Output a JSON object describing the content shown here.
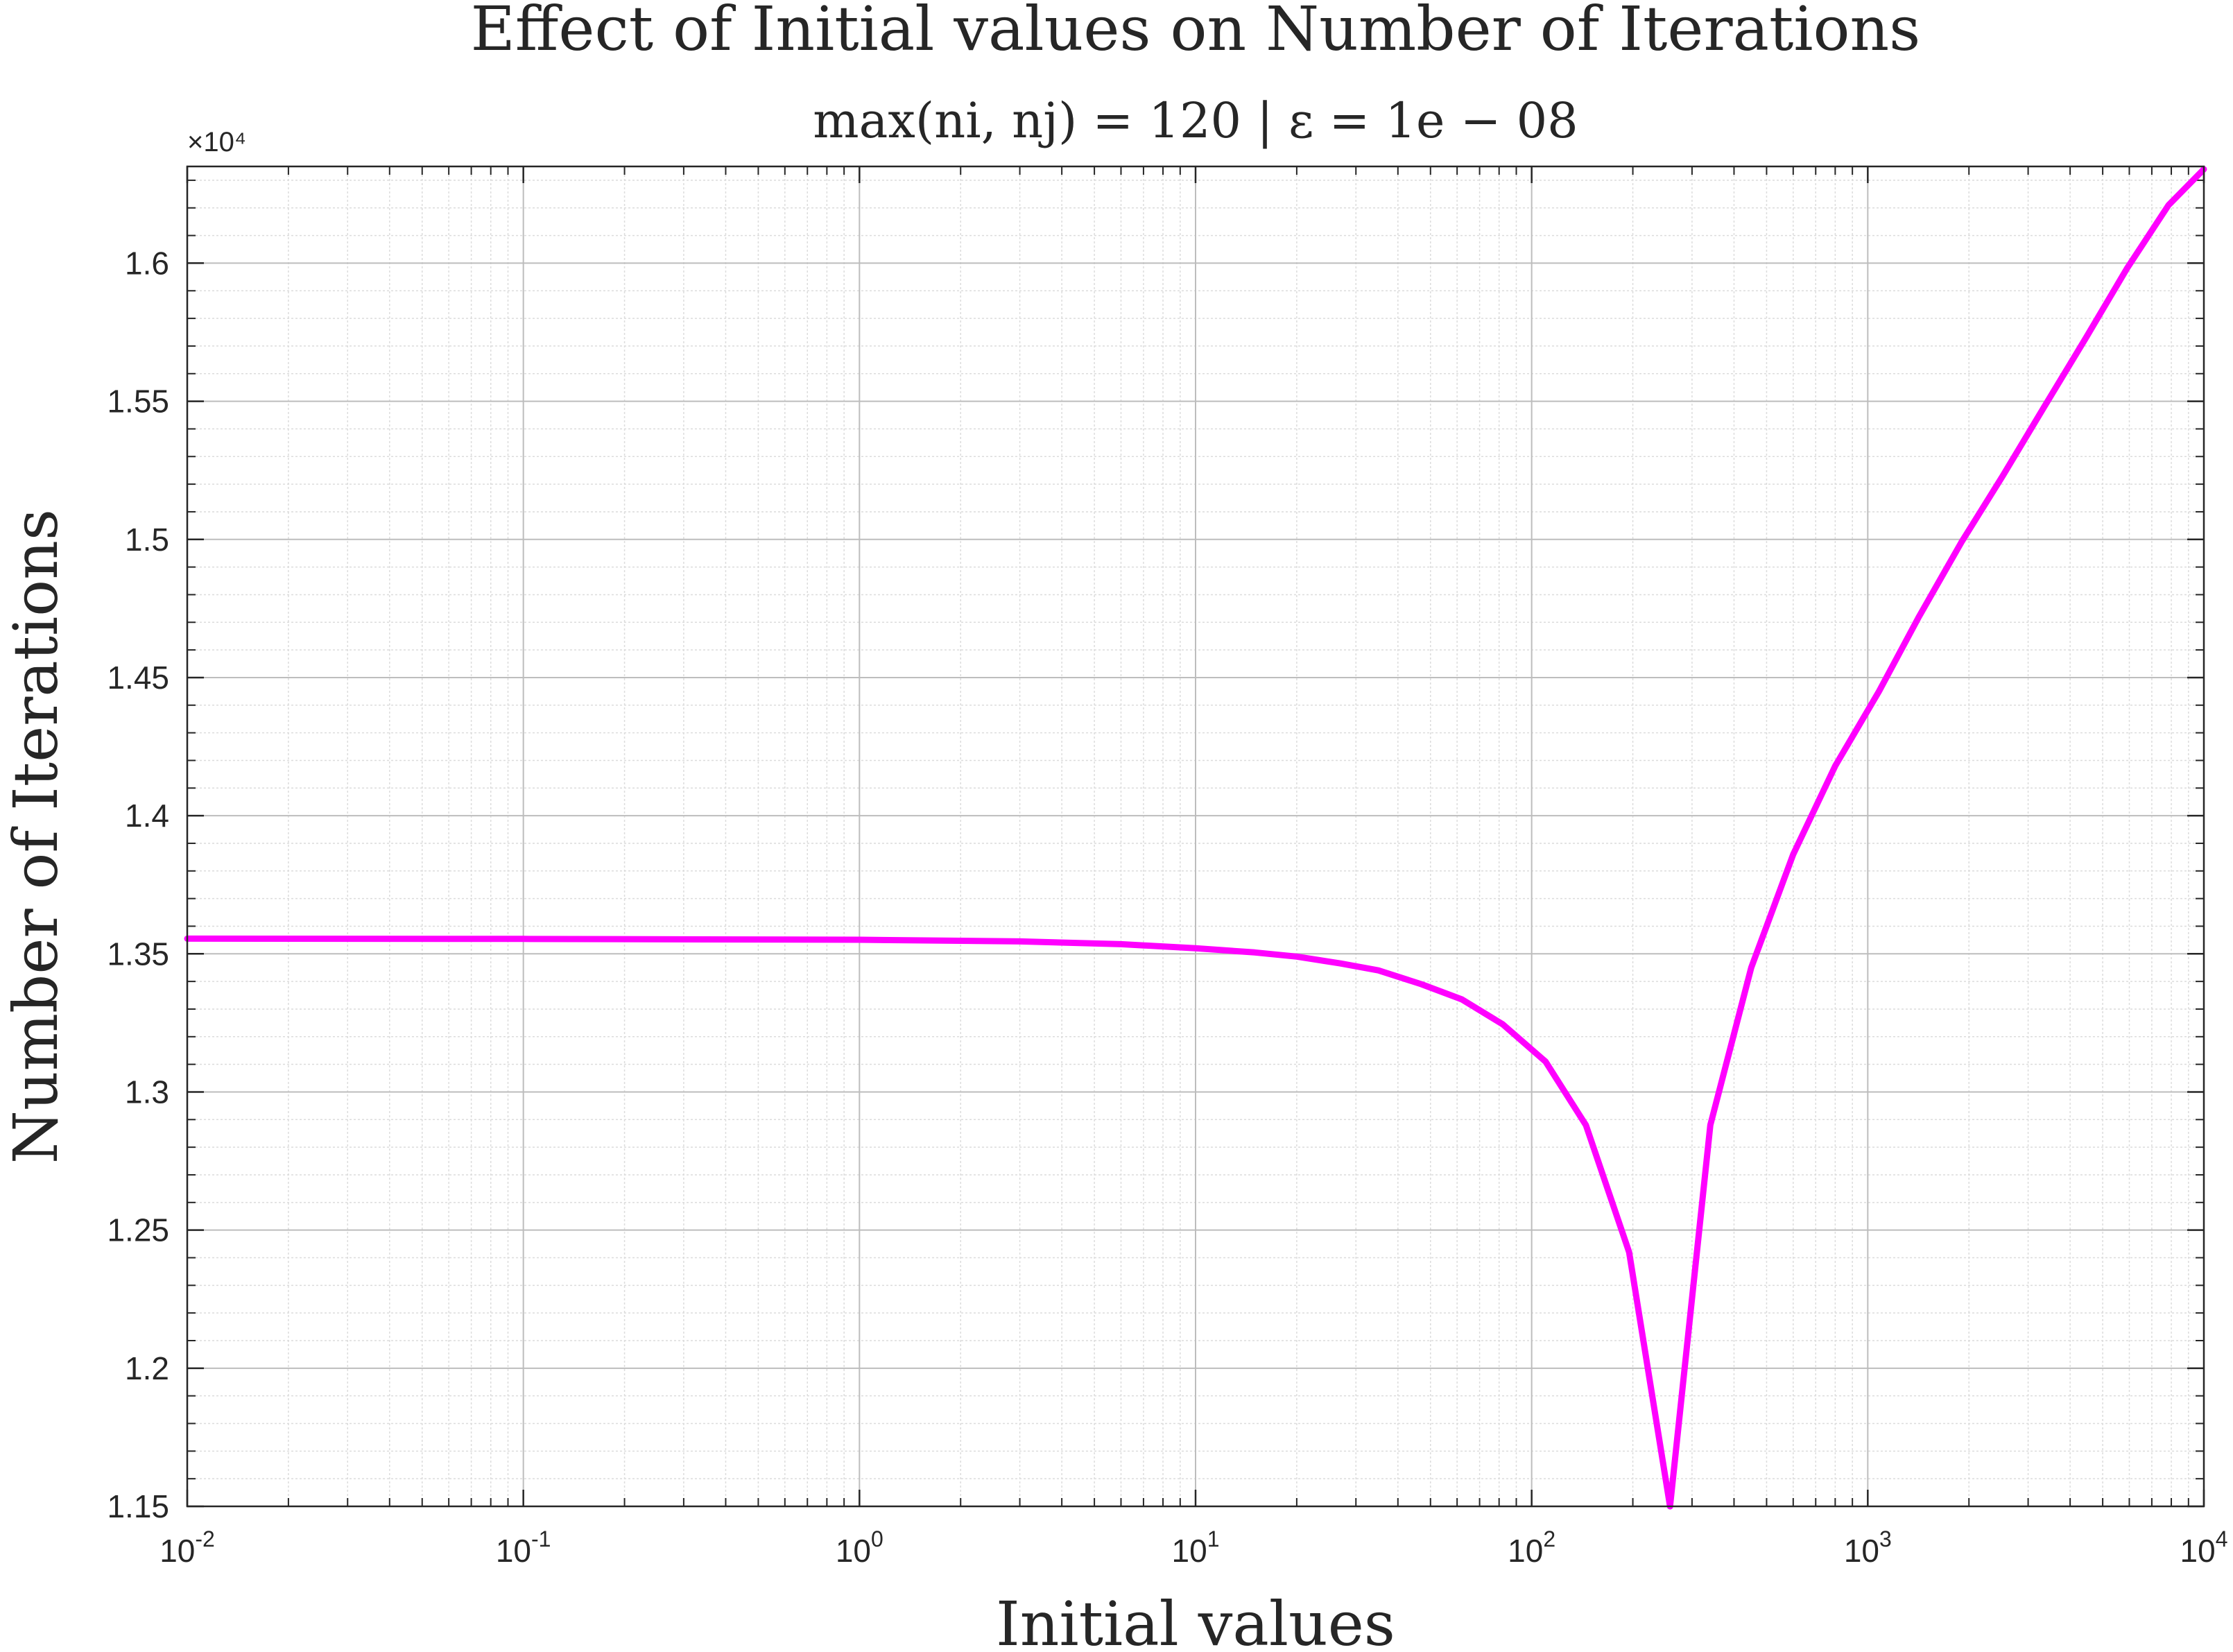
{
  "chart_data": {
    "type": "line",
    "title": "Effect of Initial values on Number of Iterations",
    "subtitle": "max(ni, nj) = 120 | ε = 1e − 08",
    "xlabel": "Initial values",
    "ylabel": "Number of Iterations",
    "x_scale": "log",
    "xlim": [
      0.01,
      10000
    ],
    "ylim": [
      11500,
      16350
    ],
    "y_exponent_label": "×10⁴",
    "x_tick_labels": [
      {
        "base": "10",
        "exp": "-2",
        "value": 0.01
      },
      {
        "base": "10",
        "exp": "-1",
        "value": 0.1
      },
      {
        "base": "10",
        "exp": "0",
        "value": 1
      },
      {
        "base": "10",
        "exp": "1",
        "value": 10
      },
      {
        "base": "10",
        "exp": "2",
        "value": 100
      },
      {
        "base": "10",
        "exp": "3",
        "value": 1000
      },
      {
        "base": "10",
        "exp": "4",
        "value": 10000
      }
    ],
    "y_tick_labels": [
      {
        "label": "1.15",
        "value": 11500
      },
      {
        "label": "1.2",
        "value": 12000
      },
      {
        "label": "1.25",
        "value": 12500
      },
      {
        "label": "1.3",
        "value": 13000
      },
      {
        "label": "1.35",
        "value": 13500
      },
      {
        "label": "1.4",
        "value": 14000
      },
      {
        "label": "1.45",
        "value": 14500
      },
      {
        "label": "1.5",
        "value": 15000
      },
      {
        "label": "1.55",
        "value": 15500
      },
      {
        "label": "1.6",
        "value": 16000
      }
    ],
    "grid": true,
    "minor_grid": true,
    "series": [
      {
        "color": "#ff00ff",
        "x": [
          0.01,
          0.1,
          1,
          3,
          6,
          10,
          15,
          20,
          27,
          35,
          47,
          62,
          82,
          110,
          145,
          195,
          258,
          340,
          450,
          600,
          800,
          1080,
          1420,
          1900,
          2520,
          3350,
          4460,
          5900,
          7850,
          10000
        ],
        "y": [
          13555,
          13554,
          13551,
          13545,
          13535,
          13520,
          13505,
          13490,
          13465,
          13440,
          13390,
          13335,
          13245,
          13110,
          12880,
          12420,
          11500,
          12880,
          13450,
          13860,
          14180,
          14450,
          14720,
          14990,
          15230,
          15480,
          15730,
          15980,
          16210,
          16340
        ]
      }
    ]
  }
}
